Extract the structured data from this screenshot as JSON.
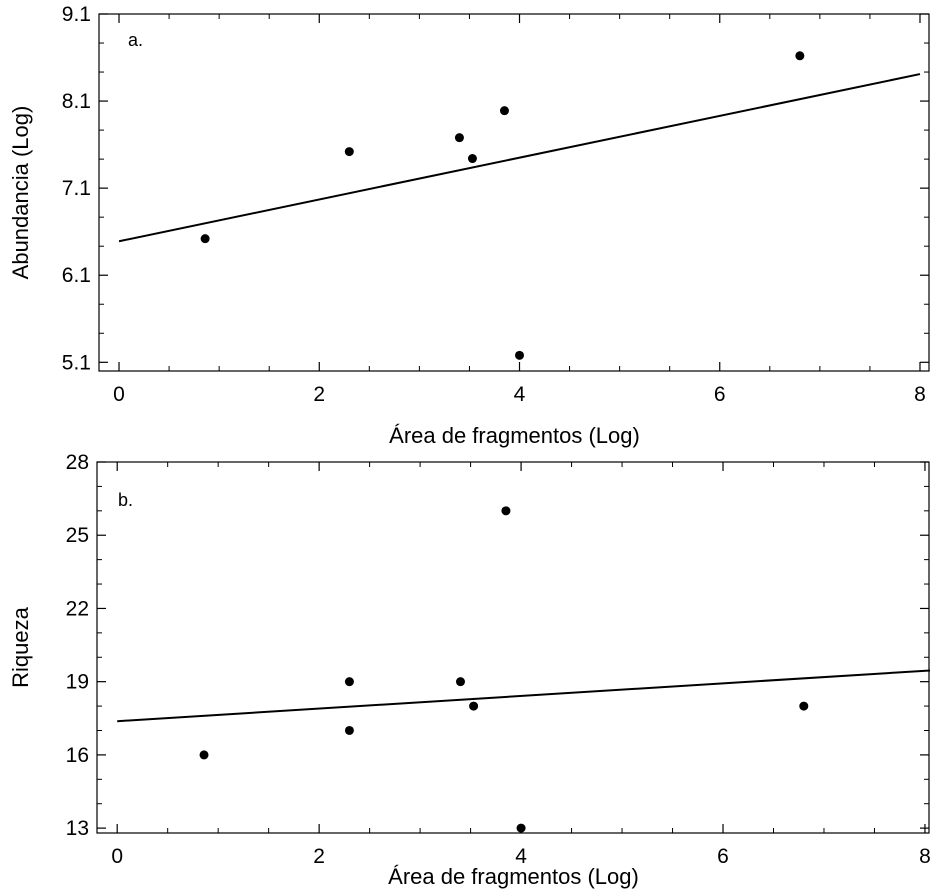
{
  "chart_data": [
    {
      "type": "scatter",
      "panel_label": "a.",
      "xlabel": "Área de fragmentos (Log)",
      "ylabel": "Abundancia (Log)",
      "xlim": [
        -0.2,
        8.1
      ],
      "ylim": [
        5.0,
        9.1
      ],
      "x_ticks": [
        0,
        2,
        4,
        6,
        8
      ],
      "x_tick_labels": [
        "0",
        "2",
        "4",
        "6",
        "8"
      ],
      "y_ticks": [
        5.1,
        6.1,
        7.1,
        8.1,
        9.1
      ],
      "y_tick_labels": [
        "5.1",
        "6.1",
        "7.1",
        "8.1",
        "9.1"
      ],
      "points": [
        {
          "x": 0.86,
          "y": 6.52
        },
        {
          "x": 2.3,
          "y": 7.52
        },
        {
          "x": 3.4,
          "y": 7.68
        },
        {
          "x": 3.53,
          "y": 7.44
        },
        {
          "x": 3.85,
          "y": 7.99
        },
        {
          "x": 4.0,
          "y": 5.18
        },
        {
          "x": 6.8,
          "y": 8.62
        }
      ],
      "fit_line": {
        "x": [
          0,
          8
        ],
        "y": [
          6.49,
          8.41
        ]
      },
      "grid": false,
      "colors": {
        "points": "#000000",
        "line": "#000000",
        "frame": "#000000"
      }
    },
    {
      "type": "scatter",
      "panel_label": "b.",
      "xlabel": "Área de fragmentos (Log)",
      "ylabel": "Riqueza",
      "xlim": [
        -0.2,
        8.05
      ],
      "ylim": [
        12.8,
        28.0
      ],
      "x_ticks": [
        0,
        2,
        4,
        6,
        8
      ],
      "x_tick_labels": [
        "0",
        "2",
        "4",
        "6",
        "8"
      ],
      "y_ticks": [
        13,
        16,
        19,
        22,
        25,
        28
      ],
      "y_tick_labels": [
        "13",
        "16",
        "19",
        "22",
        "25",
        "28"
      ],
      "points": [
        {
          "x": 0.86,
          "y": 16
        },
        {
          "x": 2.3,
          "y": 19
        },
        {
          "x": 2.3,
          "y": 17
        },
        {
          "x": 3.4,
          "y": 19
        },
        {
          "x": 3.53,
          "y": 18
        },
        {
          "x": 3.85,
          "y": 26
        },
        {
          "x": 4.0,
          "y": 13
        },
        {
          "x": 6.8,
          "y": 18
        }
      ],
      "fit_line": {
        "x": [
          0,
          8.05
        ],
        "y": [
          17.38,
          19.46
        ]
      },
      "grid": false,
      "colors": {
        "points": "#000000",
        "line": "#000000",
        "frame": "#000000"
      }
    }
  ]
}
